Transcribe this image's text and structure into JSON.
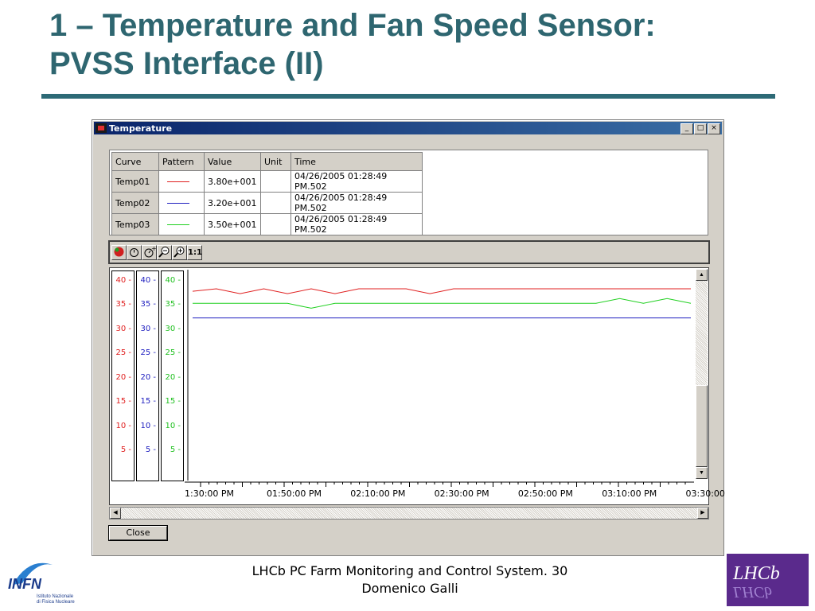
{
  "slide": {
    "title_line1": "1 – Temperature and Fan Speed Sensor:",
    "title_line2": "PVSS Interface (II)",
    "footer_line1": "LHCb PC Farm Monitoring and Control System. 30",
    "footer_line2": "Domenico Galli"
  },
  "window": {
    "title": "Temperature",
    "minimize": "_",
    "maximize": "□",
    "close": "×"
  },
  "table": {
    "headers": [
      "Curve",
      "Pattern",
      "Value",
      "Unit",
      "Time"
    ],
    "rows": [
      {
        "curve": "Temp01",
        "color": "#e02020",
        "value": "3.80e+001",
        "unit": "",
        "time": "04/26/2005 01:28:49 PM.502"
      },
      {
        "curve": "Temp02",
        "color": "#2020c0",
        "value": "3.20e+001",
        "unit": "",
        "time": "04/26/2005 01:28:49 PM.502"
      },
      {
        "curve": "Temp03",
        "color": "#20d020",
        "value": "3.50e+001",
        "unit": "",
        "time": "04/26/2005 01:28:49 PM.502"
      }
    ]
  },
  "toolbar": {
    "icons": [
      "traffic-light-icon",
      "stopwatch-icon",
      "stopwatch-plus-icon",
      "zoom-out-icon",
      "zoom-in-icon"
    ],
    "one_to_one_label": "1:1"
  },
  "axes": {
    "ticks": [
      "40",
      "35",
      "30",
      "25",
      "20",
      "15",
      "10",
      "5"
    ],
    "time_labels": [
      "1:30:00 PM",
      "01:50:00 PM",
      "02:10:00 PM",
      "02:30:00 PM",
      "02:50:00 PM",
      "03:10:00 PM",
      "03:30:00"
    ]
  },
  "close_label": "Close",
  "chart_data": {
    "type": "line",
    "ylim": [
      0,
      42
    ],
    "x_range": [
      "01:30:00 PM",
      "03:30:00 PM"
    ],
    "series": [
      {
        "name": "Temp01",
        "color": "#e02020",
        "values": [
          37.5,
          38,
          37,
          38,
          37,
          38,
          37,
          38,
          38,
          38,
          37,
          38,
          38,
          38,
          38,
          38,
          38,
          38,
          38,
          38,
          38,
          38
        ]
      },
      {
        "name": "Temp02",
        "color": "#2020c0",
        "values": [
          32,
          32,
          32,
          32,
          32,
          32,
          32,
          32,
          32,
          32,
          32,
          32,
          32,
          32,
          32,
          32,
          32,
          32,
          32,
          32,
          32,
          32
        ]
      },
      {
        "name": "Temp03",
        "color": "#20d020",
        "values": [
          35,
          35,
          35,
          35,
          35,
          34,
          35,
          35,
          35,
          35,
          35,
          35,
          35,
          35,
          35,
          35,
          35,
          35,
          36,
          35,
          36,
          35
        ]
      }
    ]
  }
}
